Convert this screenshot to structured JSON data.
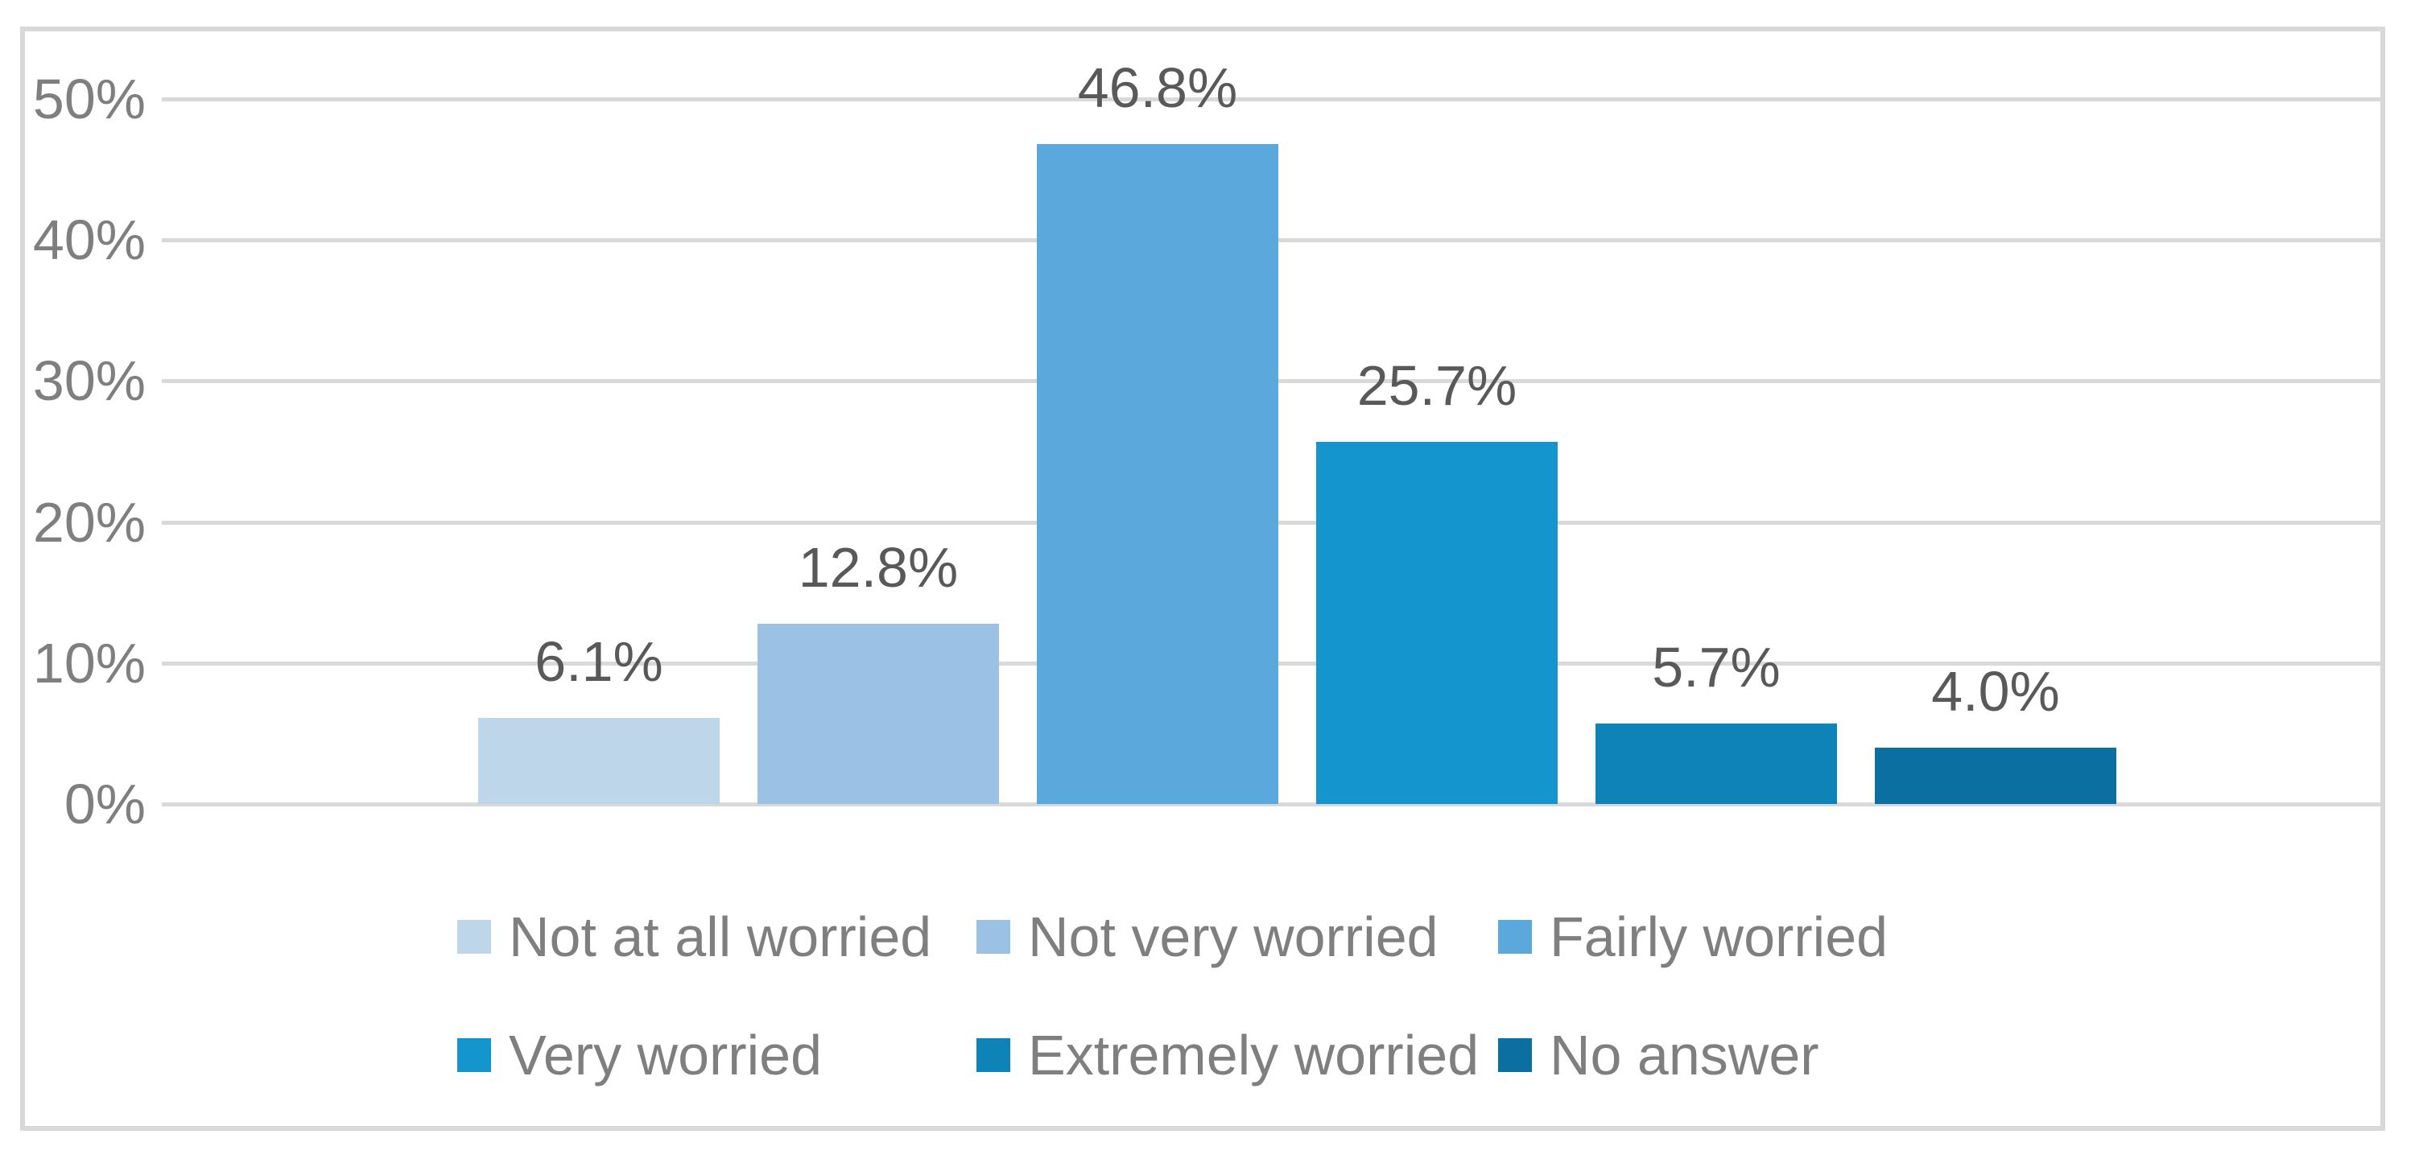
{
  "chart_data": {
    "type": "bar",
    "categories": [
      "Not at all worried",
      "Not very worried",
      "Fairly worried",
      "Very worried",
      "Extremely worried",
      "No answer"
    ],
    "values": [
      6.1,
      12.8,
      46.8,
      25.7,
      5.7,
      4.0
    ],
    "value_labels": [
      "6.1%",
      "12.8%",
      "46.8%",
      "25.7%",
      "5.7%",
      "4.0%"
    ],
    "bar_colors": [
      "#bdd6ea",
      "#9bc1e4",
      "#5ba9dc",
      "#1595ce",
      "#0e83b7",
      "#0b70a1"
    ],
    "ytick_values": [
      50,
      40,
      30,
      20,
      10,
      0
    ],
    "ytick_labels": [
      "50%",
      "40%",
      "30%",
      "20%",
      "10%",
      "0%"
    ],
    "ylim": [
      0,
      50
    ],
    "grid": true,
    "gridline_color": "#d9d9d9",
    "label_color": "#595959",
    "axis_text_color": "#7f7f7f",
    "legend_position": "bottom",
    "legend_rows": [
      [
        0,
        1,
        2
      ],
      [
        3,
        4,
        5
      ]
    ],
    "title": "",
    "xlabel": "",
    "ylabel": ""
  }
}
